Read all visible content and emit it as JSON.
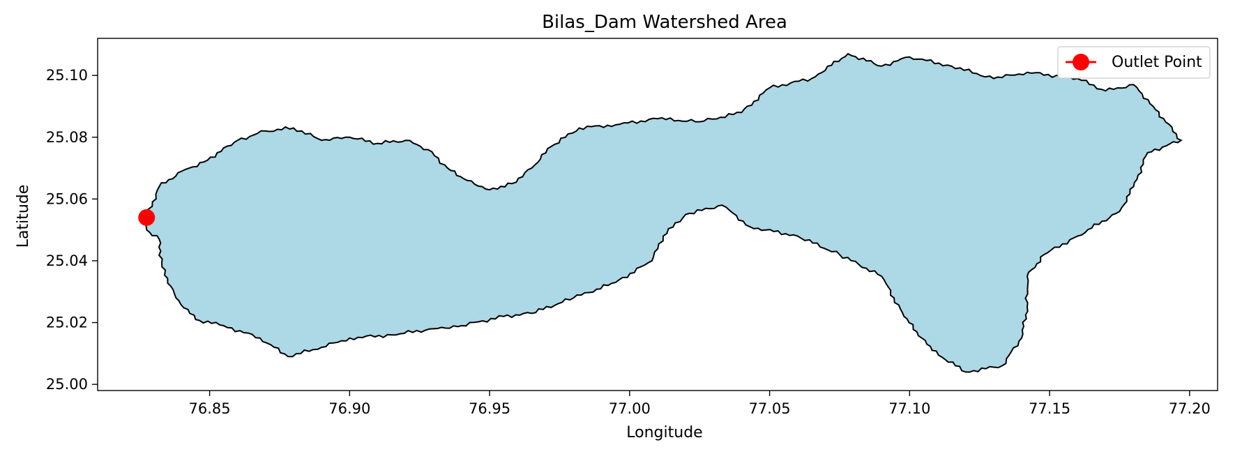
{
  "chart_data": {
    "type": "map",
    "title": "Bilas_Dam Watershed Area",
    "xlabel": "Longitude",
    "ylabel": "Latitude",
    "xlim": [
      76.81,
      77.21
    ],
    "ylim": [
      24.998,
      25.112
    ],
    "xticks": [
      76.85,
      76.9,
      76.95,
      77.0,
      77.05,
      77.1,
      77.15,
      77.2
    ],
    "xtick_labels": [
      "76.85",
      "76.90",
      "76.95",
      "77.00",
      "77.05",
      "77.10",
      "77.15",
      "77.20"
    ],
    "yticks": [
      25.0,
      25.02,
      25.04,
      25.06,
      25.08,
      25.1
    ],
    "ytick_labels": [
      "25.00",
      "25.02",
      "25.04",
      "25.06",
      "25.08",
      "25.10"
    ],
    "grid": false,
    "legend": {
      "placement": "top-right",
      "entries": [
        {
          "label": "Outlet Point",
          "color": "#ff0000"
        }
      ]
    },
    "watershed": {
      "fill_color": "#add8e6",
      "edge_color": "#000000",
      "boundary": [
        [
          76.8275,
          25.054
        ],
        [
          76.832,
          25.064
        ],
        [
          76.84,
          25.069
        ],
        [
          76.848,
          25.072
        ],
        [
          76.86,
          25.079
        ],
        [
          76.87,
          25.082
        ],
        [
          76.88,
          25.083
        ],
        [
          76.89,
          25.079
        ],
        [
          76.9,
          25.08
        ],
        [
          76.91,
          25.078
        ],
        [
          76.92,
          25.079
        ],
        [
          76.928,
          25.076
        ],
        [
          76.935,
          25.07
        ],
        [
          76.942,
          25.066
        ],
        [
          76.95,
          25.063
        ],
        [
          76.958,
          25.065
        ],
        [
          76.965,
          25.07
        ],
        [
          76.972,
          25.077
        ],
        [
          76.982,
          25.083
        ],
        [
          76.995,
          25.084
        ],
        [
          77.01,
          25.086
        ],
        [
          77.025,
          25.085
        ],
        [
          77.04,
          25.088
        ],
        [
          77.05,
          25.096
        ],
        [
          77.065,
          25.099
        ],
        [
          77.078,
          25.107
        ],
        [
          77.09,
          25.103
        ],
        [
          77.1,
          25.106
        ],
        [
          77.115,
          25.103
        ],
        [
          77.13,
          25.099
        ],
        [
          77.142,
          25.101
        ],
        [
          77.16,
          25.099
        ],
        [
          77.17,
          25.095
        ],
        [
          77.18,
          25.097
        ],
        [
          77.187,
          25.09
        ],
        [
          77.197,
          25.079
        ],
        [
          77.185,
          25.075
        ],
        [
          77.18,
          25.064
        ],
        [
          77.175,
          25.056
        ],
        [
          77.16,
          25.048
        ],
        [
          77.148,
          25.042
        ],
        [
          77.142,
          25.035
        ],
        [
          77.142,
          25.025
        ],
        [
          77.14,
          25.015
        ],
        [
          77.133,
          25.006
        ],
        [
          77.12,
          25.004
        ],
        [
          77.108,
          25.011
        ],
        [
          77.098,
          25.022
        ],
        [
          77.09,
          25.035
        ],
        [
          77.075,
          25.042
        ],
        [
          77.06,
          25.048
        ],
        [
          77.043,
          25.051
        ],
        [
          77.033,
          25.058
        ],
        [
          77.02,
          25.055
        ],
        [
          77.012,
          25.048
        ],
        [
          77.008,
          25.04
        ],
        [
          76.995,
          25.033
        ],
        [
          76.98,
          25.028
        ],
        [
          76.965,
          25.023
        ],
        [
          76.955,
          25.022
        ],
        [
          76.94,
          25.019
        ],
        [
          76.93,
          25.018
        ],
        [
          76.915,
          25.016
        ],
        [
          76.9,
          25.015
        ],
        [
          76.89,
          25.012
        ],
        [
          76.878,
          25.009
        ],
        [
          76.868,
          25.015
        ],
        [
          76.855,
          25.019
        ],
        [
          76.845,
          25.021
        ],
        [
          76.838,
          25.028
        ],
        [
          76.833,
          25.038
        ],
        [
          76.832,
          25.047
        ],
        [
          76.8275,
          25.05
        ]
      ]
    },
    "outlet_point": {
      "label": "Outlet Point",
      "x": 76.8275,
      "y": 25.054,
      "color": "#ff0000"
    }
  }
}
